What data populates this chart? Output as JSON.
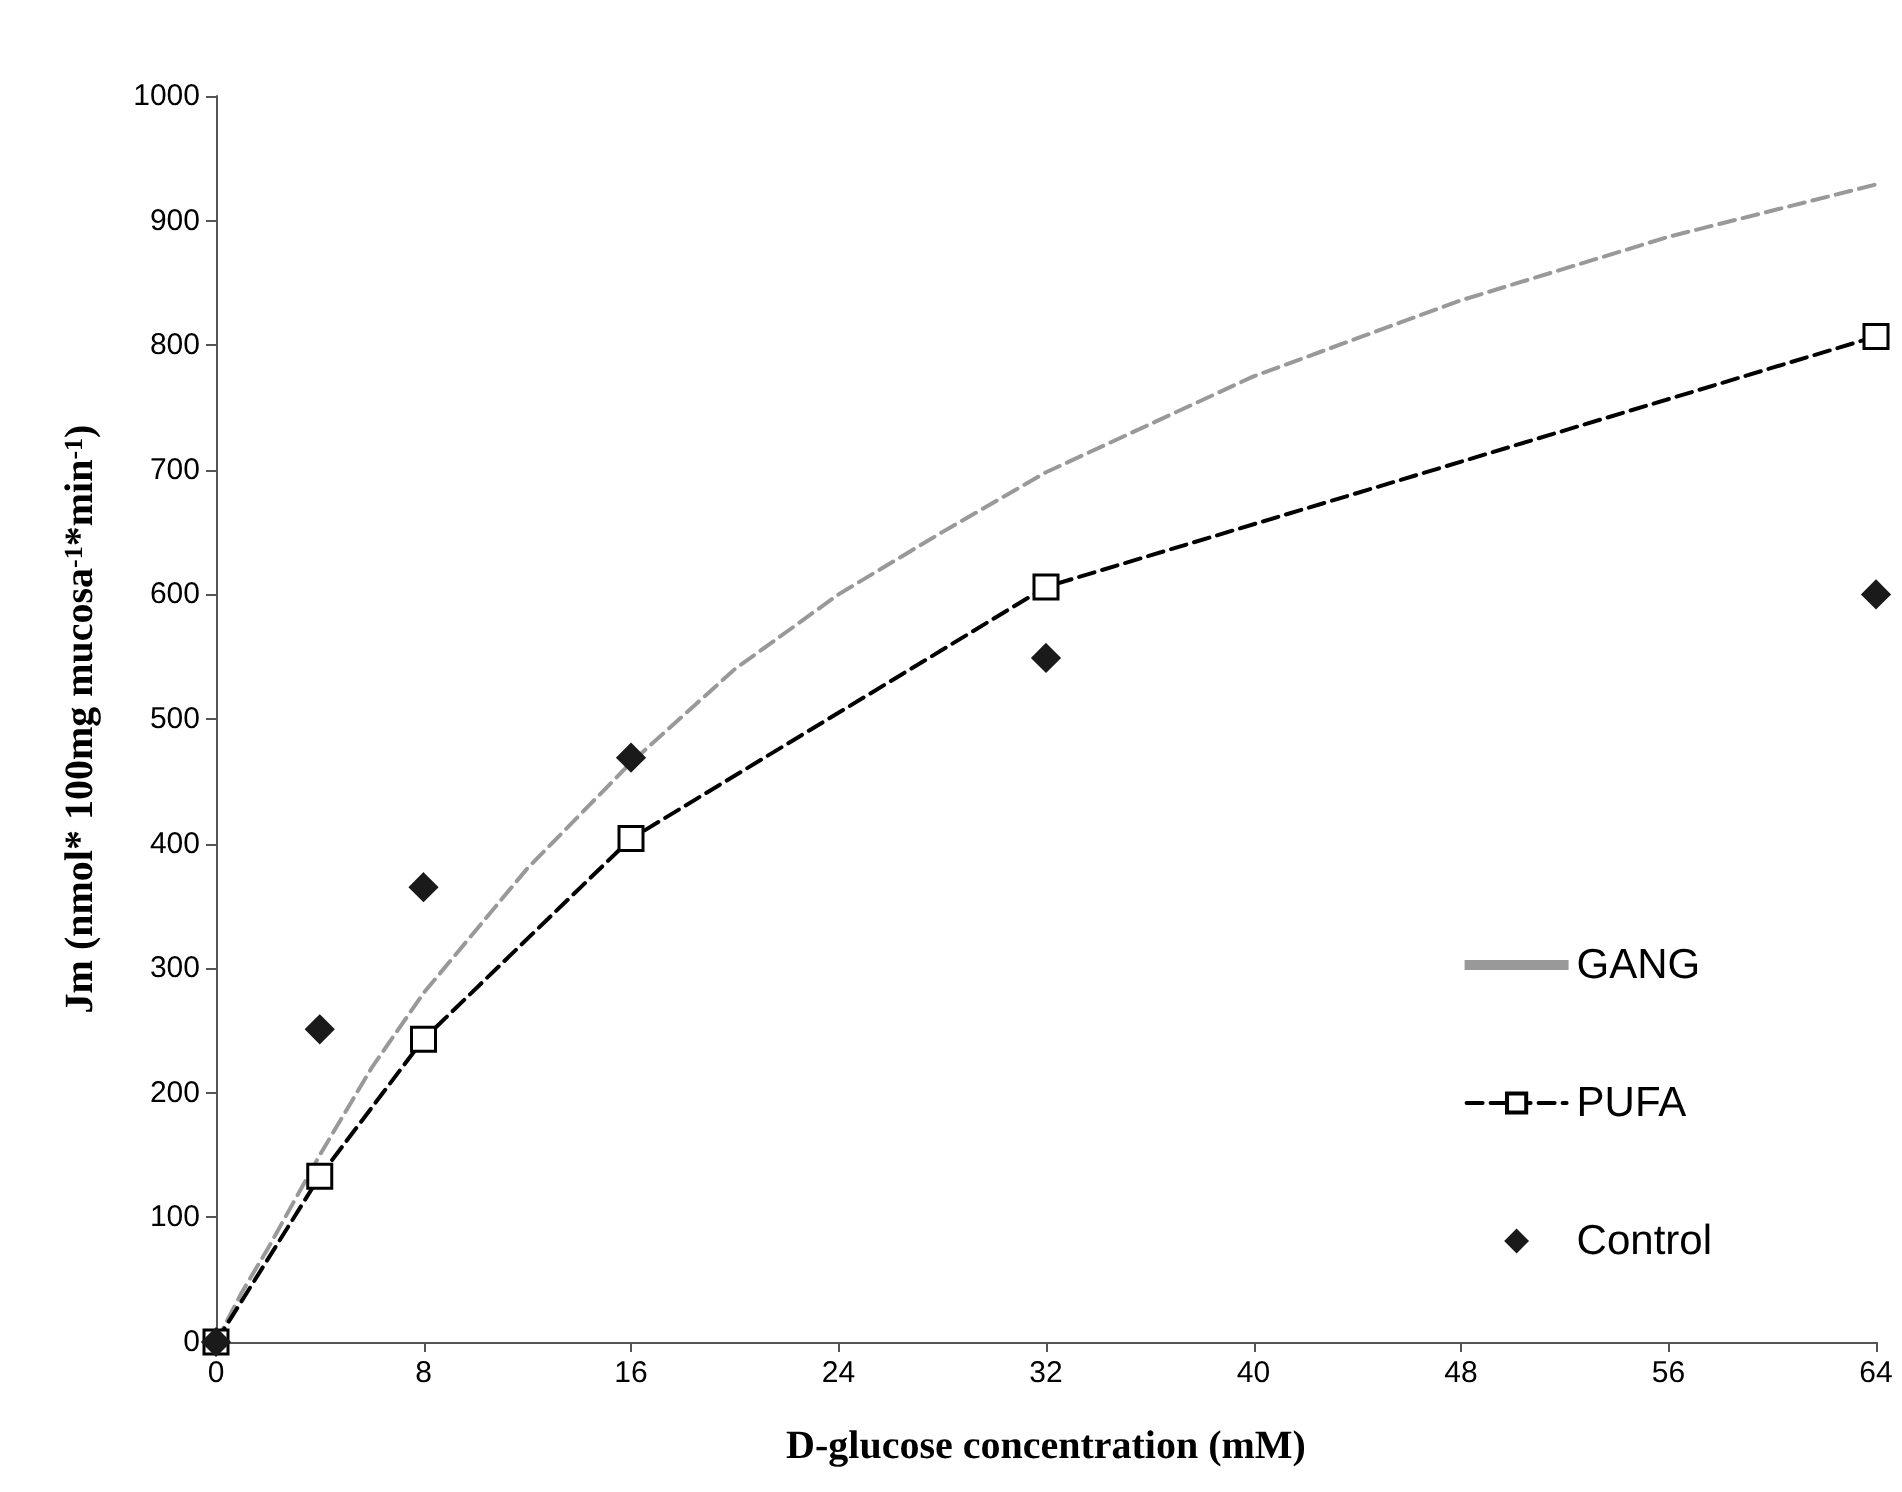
{
  "chart_data": {
    "type": "line",
    "xlabel": "D-glucose concentration (mM)",
    "ylabel": "Jm (nmol* 100mg mucosa$^{-1}$*min$^{-1}$)",
    "xlim": [
      0,
      64
    ],
    "xticks": [
      0,
      8,
      16,
      24,
      32,
      40,
      48,
      56,
      64
    ],
    "ylim": [
      0,
      1000
    ],
    "yticks": [
      0,
      100,
      200,
      300,
      400,
      500,
      600,
      700,
      800,
      900,
      {
        "value": 1000,
        "label": "1000"
      }
    ],
    "grid": false,
    "legend": "bottom right",
    "series": [
      {
        "name": "GANG",
        "color": "#999999",
        "line_style": "dashed",
        "marker": "none",
        "x": [
          0,
          1,
          2,
          4,
          6,
          8,
          12,
          16,
          20,
          24,
          28,
          32,
          40,
          48,
          56,
          64
        ],
        "values": [
          0,
          40,
          75,
          150,
          220,
          280,
          380,
          465,
          540,
          600,
          650,
          698,
          775,
          836,
          887,
          929
        ]
      },
      {
        "name": "PUFA",
        "color": "#000000",
        "line_style": "dashed",
        "marker": "square",
        "x": [
          0,
          4,
          8,
          16,
          32,
          64
        ],
        "values": [
          0,
          133,
          243,
          404,
          606,
          807
        ]
      },
      {
        "name": "Control",
        "type": "scatter",
        "color": "#1a1a1a",
        "marker": "diamond",
        "x": [
          0,
          4,
          8,
          16,
          32,
          64
        ],
        "values": [
          0,
          251,
          365,
          469,
          549,
          600
        ]
      }
    ]
  }
}
